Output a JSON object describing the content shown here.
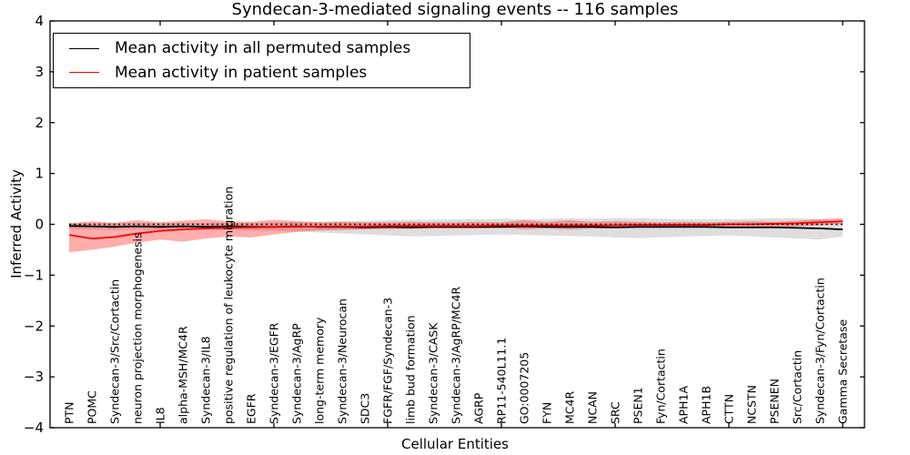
{
  "figure": {
    "title": "Syndecan-3-mediated signaling events -- 116 samples",
    "xlabel": "Cellular Entities",
    "ylabel": "Inferred Activity"
  },
  "chart_data": {
    "type": "line",
    "title": "Syndecan-3-mediated signaling events -- 116 samples",
    "xlabel": "Cellular Entities",
    "ylabel": "Inferred Activity",
    "ylim": [
      -4,
      4
    ],
    "yticks": [
      4,
      3,
      2,
      1,
      0,
      -1,
      -2,
      -3,
      -4
    ],
    "grid": false,
    "legend_position": "upper left",
    "reference_line_y": 0,
    "categories": [
      "PTN",
      "POMC",
      "Syndecan-3/Src/Cortactin",
      "neuron projection morphogenesis",
      "IL8",
      "alpha-MSH/MC4R",
      "Syndecan-3/IL8",
      "positive regulation of leukocyte migration",
      "EGFR",
      "Syndecan-3/EGFR",
      "Syndecan-3/AgRP",
      "long-term memory",
      "Syndecan-3/Neurocan",
      "SDC3",
      "FGFR/FGF/Syndecan-3",
      "limb bud formation",
      "Syndecan-3/CASK",
      "Syndecan-3/AgRP/MC4R",
      "AGRP",
      "RP11-540L11.1",
      "GO:0007205",
      "FYN",
      "MC4R",
      "NCAN",
      "SRC",
      "PSEN1",
      "Fyn/Cortactin",
      "APH1A",
      "APH1B",
      "CTTN",
      "NCSTN",
      "PSENEN",
      "Src/Cortactin",
      "Syndecan-3/Fyn/Cortactin",
      "Gamma Secretase"
    ],
    "xtick_indices": [
      4,
      9,
      14,
      19,
      24,
      29,
      34
    ],
    "series": [
      {
        "name": "Mean activity in all permuted samples",
        "color": "#000000",
        "band_color": "rgba(0,0,0,0.13)",
        "values": [
          -0.03,
          -0.04,
          -0.05,
          -0.04,
          -0.05,
          -0.04,
          -0.05,
          -0.04,
          -0.05,
          -0.05,
          -0.04,
          -0.05,
          -0.05,
          -0.06,
          -0.05,
          -0.06,
          -0.05,
          -0.05,
          -0.05,
          -0.05,
          -0.04,
          -0.05,
          -0.05,
          -0.05,
          -0.06,
          -0.05,
          -0.05,
          -0.05,
          -0.05,
          -0.06,
          -0.06,
          -0.06,
          -0.07,
          -0.08,
          -0.1
        ],
        "band_upper": [
          0.02,
          0.02,
          0.02,
          0.03,
          0.02,
          0.03,
          0.03,
          0.03,
          0.03,
          0.04,
          0.05,
          0.05,
          0.06,
          0.07,
          0.08,
          0.09,
          0.09,
          0.1,
          0.1,
          0.11,
          0.1,
          0.11,
          0.12,
          0.11,
          0.12,
          0.12,
          0.11,
          0.1,
          0.1,
          0.1,
          0.11,
          0.12,
          0.12,
          0.1,
          0.05
        ],
        "band_lower": [
          -0.09,
          -0.1,
          -0.11,
          -0.1,
          -0.11,
          -0.1,
          -0.11,
          -0.11,
          -0.12,
          -0.13,
          -0.14,
          -0.16,
          -0.18,
          -0.2,
          -0.22,
          -0.24,
          -0.23,
          -0.22,
          -0.21,
          -0.2,
          -0.21,
          -0.22,
          -0.23,
          -0.24,
          -0.26,
          -0.27,
          -0.26,
          -0.24,
          -0.23,
          -0.22,
          -0.24,
          -0.26,
          -0.28,
          -0.3,
          -0.24
        ]
      },
      {
        "name": "Mean activity in patient samples",
        "color": "#ff0000",
        "band_color": "rgba(255,0,0,0.32)",
        "values": [
          -0.21,
          -0.28,
          -0.25,
          -0.18,
          -0.13,
          -0.1,
          -0.08,
          -0.07,
          -0.06,
          -0.05,
          -0.05,
          -0.04,
          -0.04,
          -0.04,
          -0.03,
          -0.03,
          -0.03,
          -0.03,
          -0.03,
          -0.02,
          -0.02,
          -0.02,
          -0.02,
          -0.02,
          -0.02,
          -0.01,
          -0.01,
          -0.01,
          -0.01,
          0.0,
          0.0,
          0.01,
          0.02,
          0.04,
          0.06
        ],
        "band_upper": [
          0.02,
          0.06,
          0.03,
          0.08,
          0.04,
          0.07,
          0.1,
          0.06,
          0.05,
          0.09,
          0.06,
          0.04,
          0.05,
          0.04,
          0.04,
          0.05,
          0.04,
          0.04,
          0.05,
          0.04,
          0.08,
          0.05,
          0.08,
          0.05,
          0.06,
          0.05,
          0.04,
          0.05,
          0.04,
          0.05,
          0.06,
          0.05,
          0.07,
          0.1,
          0.12
        ],
        "band_lower": [
          -0.55,
          -0.5,
          -0.44,
          -0.36,
          -0.3,
          -0.34,
          -0.28,
          -0.24,
          -0.26,
          -0.2,
          -0.15,
          -0.12,
          -0.11,
          -0.1,
          -0.09,
          -0.09,
          -0.08,
          -0.08,
          -0.08,
          -0.07,
          -0.1,
          -0.08,
          -0.1,
          -0.08,
          -0.08,
          -0.07,
          -0.07,
          -0.06,
          -0.06,
          -0.06,
          -0.06,
          -0.05,
          -0.04,
          -0.02,
          0.01
        ]
      }
    ]
  }
}
